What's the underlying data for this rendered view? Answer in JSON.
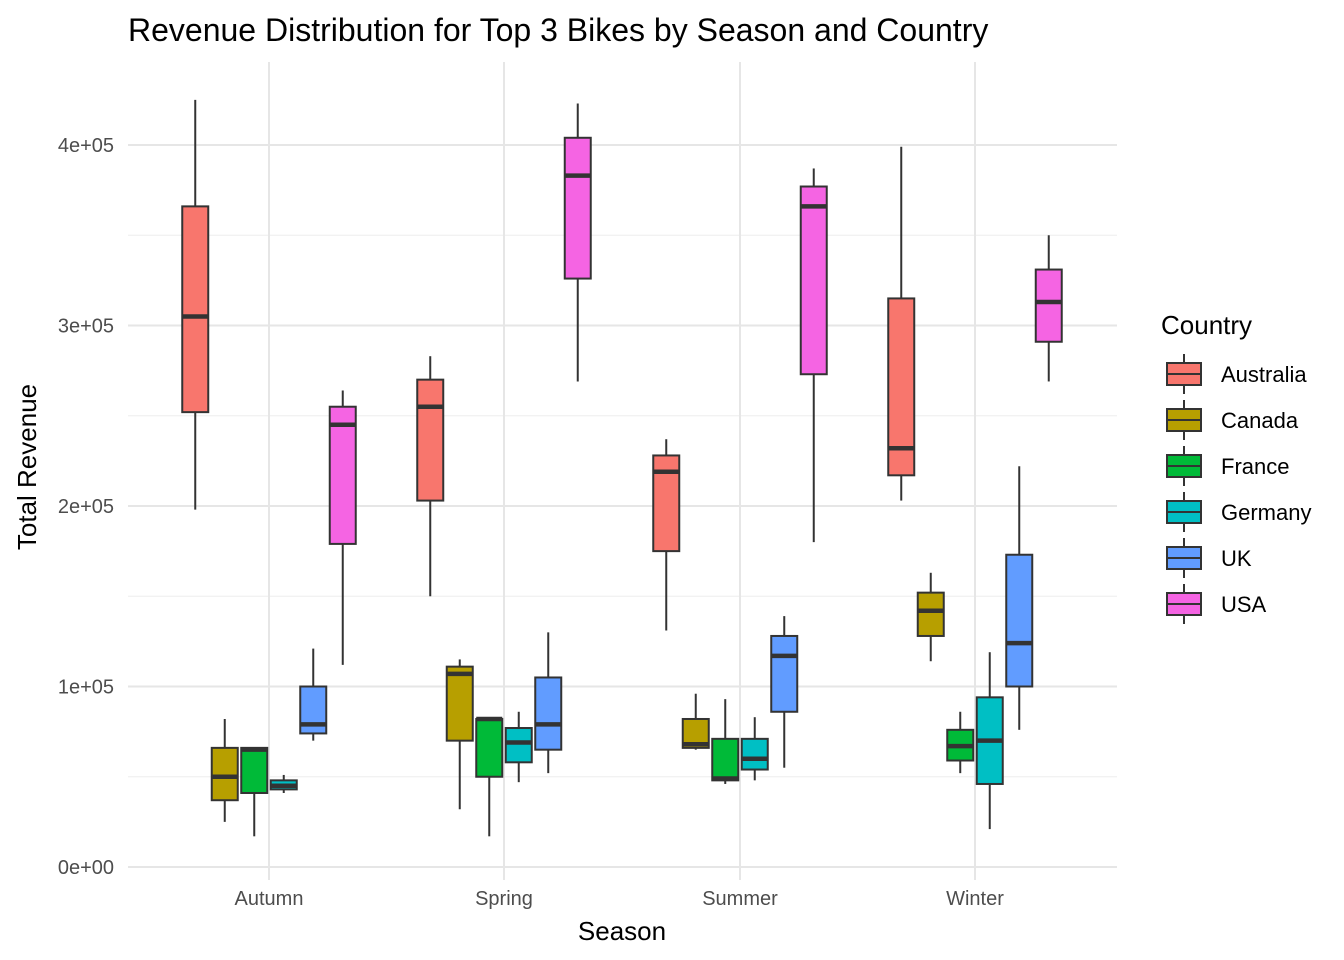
{
  "chart_data": {
    "type": "boxplot",
    "title": "Revenue Distribution for Top 3 Bikes by Season and Country",
    "xlabel": "Season",
    "ylabel": "Total Revenue",
    "categories": [
      "Autumn",
      "Spring",
      "Summer",
      "Winter"
    ],
    "y_ticks": [
      0,
      100000,
      200000,
      300000,
      400000
    ],
    "y_tick_labels": [
      "0e+00",
      "1e+05",
      "2e+05",
      "3e+05",
      "4e+05"
    ],
    "ylim": [
      -15000,
      445000
    ],
    "grid": true,
    "legend": {
      "title": "Country",
      "position": "right"
    },
    "series": [
      {
        "name": "Australia",
        "color": "#F8766D",
        "boxes": [
          {
            "category": "Autumn",
            "min": 198000,
            "q1": 252000,
            "median": 305000,
            "q3": 366000,
            "max": 425000
          },
          {
            "category": "Spring",
            "min": 150000,
            "q1": 203000,
            "median": 255000,
            "q3": 270000,
            "max": 283000
          },
          {
            "category": "Summer",
            "min": 131000,
            "q1": 175000,
            "median": 219000,
            "q3": 228000,
            "max": 237000
          },
          {
            "category": "Winter",
            "min": 203000,
            "q1": 217000,
            "median": 232000,
            "q3": 315000,
            "max": 399000
          }
        ]
      },
      {
        "name": "Canada",
        "color": "#B79F00",
        "boxes": [
          {
            "category": "Autumn",
            "min": 25000,
            "q1": 37000,
            "median": 50000,
            "q3": 66000,
            "max": 82000
          },
          {
            "category": "Spring",
            "min": 32000,
            "q1": 70000,
            "median": 107000,
            "q3": 111000,
            "max": 115000
          },
          {
            "category": "Summer",
            "min": 65000,
            "q1": 66000,
            "median": 68000,
            "q3": 82000,
            "max": 96000
          },
          {
            "category": "Winter",
            "min": 114000,
            "q1": 128000,
            "median": 142000,
            "q3": 152000,
            "max": 163000
          }
        ]
      },
      {
        "name": "France",
        "color": "#00BA38",
        "boxes": [
          {
            "category": "Autumn",
            "min": 17000,
            "q1": 41000,
            "median": 65000,
            "q3": 66000,
            "max": 66000
          },
          {
            "category": "Spring",
            "min": 17000,
            "q1": 50000,
            "median": 82000,
            "q3": 82000,
            "max": 83000
          },
          {
            "category": "Summer",
            "min": 46000,
            "q1": 48000,
            "median": 49000,
            "q3": 71000,
            "max": 93000
          },
          {
            "category": "Winter",
            "min": 52000,
            "q1": 59000,
            "median": 67000,
            "q3": 76000,
            "max": 86000
          }
        ]
      },
      {
        "name": "Germany",
        "color": "#00BFC4",
        "boxes": [
          {
            "category": "Autumn",
            "min": 41000,
            "q1": 43000,
            "median": 45000,
            "q3": 48000,
            "max": 51000
          },
          {
            "category": "Spring",
            "min": 47000,
            "q1": 58000,
            "median": 69000,
            "q3": 77000,
            "max": 86000
          },
          {
            "category": "Summer",
            "min": 48000,
            "q1": 54000,
            "median": 60000,
            "q3": 71000,
            "max": 83000
          },
          {
            "category": "Winter",
            "min": 21000,
            "q1": 46000,
            "median": 70000,
            "q3": 94000,
            "max": 119000
          }
        ]
      },
      {
        "name": "UK",
        "color": "#619CFF",
        "boxes": [
          {
            "category": "Autumn",
            "min": 70000,
            "q1": 74000,
            "median": 79000,
            "q3": 100000,
            "max": 121000
          },
          {
            "category": "Spring",
            "min": 52000,
            "q1": 65000,
            "median": 79000,
            "q3": 105000,
            "max": 130000
          },
          {
            "category": "Summer",
            "min": 55000,
            "q1": 86000,
            "median": 117000,
            "q3": 128000,
            "max": 139000
          },
          {
            "category": "Winter",
            "min": 76000,
            "q1": 100000,
            "median": 124000,
            "q3": 173000,
            "max": 222000
          }
        ]
      },
      {
        "name": "USA",
        "color": "#F564E3",
        "boxes": [
          {
            "category": "Autumn",
            "min": 112000,
            "q1": 179000,
            "median": 245000,
            "q3": 255000,
            "max": 264000
          },
          {
            "category": "Spring",
            "min": 269000,
            "q1": 326000,
            "median": 383000,
            "q3": 404000,
            "max": 423000
          },
          {
            "category": "Summer",
            "min": 180000,
            "q1": 273000,
            "median": 366000,
            "q3": 377000,
            "max": 387000
          },
          {
            "category": "Winter",
            "min": 269000,
            "q1": 291000,
            "median": 313000,
            "q3": 331000,
            "max": 350000
          }
        ]
      }
    ]
  }
}
